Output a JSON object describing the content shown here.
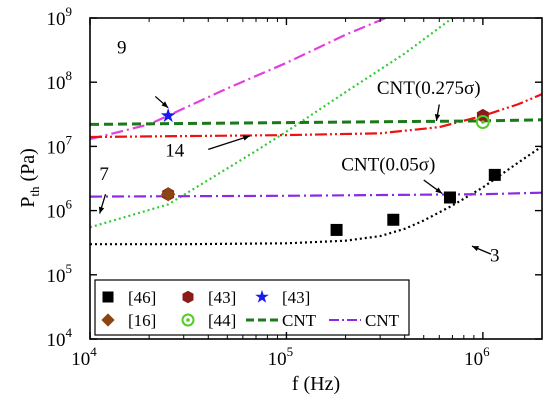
{
  "chart_data": {
    "type": "line",
    "xscale": "log",
    "yscale": "log",
    "xlim": [
      10000,
      2000000
    ],
    "ylim": [
      10000,
      1000000000
    ],
    "xlabel": "f (Hz)",
    "ylabel": {
      "main": "P",
      "sub": "th",
      "unit": "(Pa)"
    },
    "xticks": [
      {
        "value": 10000,
        "base": "10",
        "exp": "4"
      },
      {
        "value": 100000,
        "base": "10",
        "exp": "5"
      },
      {
        "value": 1000000,
        "base": "10",
        "exp": "6"
      }
    ],
    "yticks": [
      {
        "value": 10000,
        "base": "10",
        "exp": "4"
      },
      {
        "value": 100000,
        "base": "10",
        "exp": "5"
      },
      {
        "value": 1000000,
        "base": "10",
        "exp": "6"
      },
      {
        "value": 10000000,
        "base": "10",
        "exp": "7"
      },
      {
        "value": 100000000,
        "base": "10",
        "exp": "8"
      },
      {
        "value": 1000000000,
        "base": "10",
        "exp": "9"
      }
    ],
    "grid": false,
    "legend_position": "bottom",
    "series": [
      {
        "label": "3",
        "style": "dotted",
        "color": "#000000",
        "x": [
          10000,
          30000,
          100000,
          200000,
          300000,
          400000,
          500000,
          700000,
          1000000,
          1500000,
          2000000
        ],
        "y": [
          300000,
          300000,
          310000,
          340000,
          400000,
          520000,
          700000,
          1200000,
          2300000,
          5500000,
          10000000
        ]
      },
      {
        "label": "7",
        "style": "dotted",
        "color": "#33cc33",
        "x": [
          10000,
          25000,
          40000,
          70000,
          100000,
          200000,
          400000,
          700000
        ],
        "y": [
          550000,
          1250000,
          3000000,
          8500000,
          17000000,
          70000000,
          280000000,
          1000000000
        ]
      },
      {
        "label": "9",
        "style": "dash-dot",
        "color": "#e040e0",
        "x": [
          10000,
          20000,
          50000,
          100000,
          200000,
          320000
        ],
        "y": [
          13000000,
          22000000,
          80000000,
          200000000,
          550000000,
          1000000000
        ]
      },
      {
        "label": "14",
        "style": "dash-dot-dot",
        "color": "#ee1111",
        "x": [
          10000,
          100000,
          300000,
          600000,
          1000000,
          1500000,
          2000000
        ],
        "y": [
          14000000,
          15000000,
          16000000,
          20000000,
          30000000,
          45000000,
          65000000
        ]
      },
      {
        "label": "CNT(0.275σ)",
        "style": "dashed",
        "color": "#1a7a1a",
        "x": [
          10000,
          100000,
          1000000,
          2000000
        ],
        "y": [
          22000000,
          23500000,
          25000000,
          26000000
        ]
      },
      {
        "label": "CNT(0.05σ)",
        "style": "dash-dot",
        "color": "#8a2be2",
        "x": [
          10000,
          100000,
          1000000,
          2000000
        ],
        "y": [
          1650000,
          1700000,
          1800000,
          1900000
        ]
      }
    ],
    "points": [
      {
        "ref": "[46]",
        "marker": "square",
        "color": "#000000",
        "x": [
          180000,
          350000,
          680000,
          1150000
        ],
        "y": [
          500000,
          720000,
          1600000,
          3600000
        ]
      },
      {
        "ref": "[43]",
        "marker": "hexagon",
        "color": "#8b1a1a",
        "x": [
          25000,
          1000000
        ],
        "y": [
          1800000,
          30000000
        ]
      },
      {
        "ref": "[43]",
        "marker": "star",
        "color": "#1a1aee",
        "x": [
          25000
        ],
        "y": [
          30000000
        ]
      },
      {
        "ref": "[16]",
        "marker": "diamond",
        "color": "#8b4513",
        "x": [
          25000
        ],
        "y": [
          1800000
        ]
      },
      {
        "ref": "[44]",
        "marker": "circle-dot",
        "color": "#55cc22",
        "x": [
          1000000
        ],
        "y": [
          24000000
        ]
      }
    ],
    "annotations": [
      {
        "text": "9",
        "x": 14500,
        "y": 280000000,
        "arrow_to": [
          22000000,
          0
        ],
        "ax": 21500,
        "ay": 60000000,
        "atx": 25000,
        "aty": 40000000
      },
      {
        "text": "14",
        "x": 27000,
        "y": 7000000,
        "ax": 40000,
        "ay": 9000000,
        "atx": 65000,
        "aty": 14500000
      },
      {
        "text": "7",
        "x": 11800,
        "y": 3000000,
        "ax": 12000,
        "ay": 1800000,
        "atx": 11200,
        "aty": 900000
      },
      {
        "text": "CNT(0.275σ)",
        "x": 530000,
        "y": 65000000,
        "ax": 600000,
        "ay": 45000000,
        "atx": 580000,
        "aty": 25000000
      },
      {
        "text": "CNT(0.05σ)",
        "x": 330000,
        "y": 4200000,
        "ax": 500000,
        "ay": 3000000,
        "atx": 620000,
        "aty": 1850000
      },
      {
        "text": "3",
        "x": 1150000,
        "y": 160000,
        "ax": 1100000,
        "ay": 210000,
        "atx": 880000,
        "aty": 280000
      }
    ],
    "legend": {
      "rows": [
        [
          {
            "symbol": "square",
            "color": "#000000",
            "text": "[46]"
          },
          {
            "symbol": "hexagon",
            "color": "#8b1a1a",
            "text": "[43]"
          },
          {
            "symbol": "star",
            "color": "#1a1aee",
            "text": "[43]"
          }
        ],
        [
          {
            "symbol": "diamond",
            "color": "#8b4513",
            "text": "[16]"
          },
          {
            "symbol": "circle-dot",
            "color": "#55cc22",
            "text": "[44]"
          },
          {
            "symbol": "line-dashed",
            "color": "#1a7a1a",
            "text": "CNT"
          },
          {
            "symbol": "line-dashdot",
            "color": "#8a2be2",
            "text": "CNT"
          }
        ]
      ]
    }
  }
}
